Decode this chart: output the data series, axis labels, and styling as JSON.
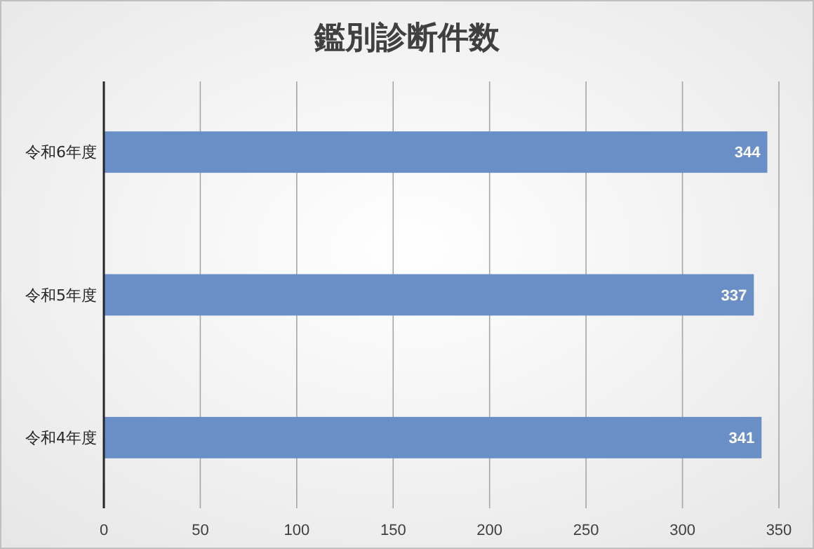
{
  "chart_data": {
    "type": "bar",
    "orientation": "horizontal",
    "title": "鑑別診断件数",
    "categories": [
      "令和6年度",
      "令和5年度",
      "令和4年度"
    ],
    "values": [
      344,
      337,
      341
    ],
    "color": "#6a8fc6",
    "xlim": [
      0,
      350
    ],
    "xticks": [
      0,
      50,
      100,
      150,
      200,
      250,
      300,
      350
    ],
    "grid": "x",
    "data_labels": true
  }
}
